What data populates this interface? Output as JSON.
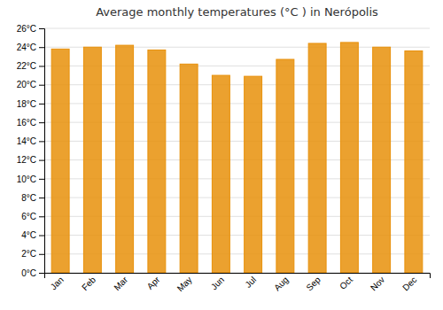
{
  "chart_data": {
    "type": "bar",
    "title": "Average monthly temperatures (°C ) in Nerópolis",
    "categories": [
      "Jan",
      "Feb",
      "Mar",
      "Apr",
      "May",
      "Jun",
      "Jul",
      "Aug",
      "Sep",
      "Oct",
      "Nov",
      "Dec"
    ],
    "values": [
      23.8,
      24.0,
      24.2,
      23.7,
      22.2,
      21.0,
      20.9,
      22.7,
      24.4,
      24.5,
      24.0,
      23.6
    ],
    "color": "#E8900A",
    "ylim": [
      0,
      26
    ],
    "yticks": [
      {
        "value": 0,
        "label": "0°C"
      },
      {
        "value": 2,
        "label": "2°C"
      },
      {
        "value": 4,
        "label": "4°C"
      },
      {
        "value": 6,
        "label": "6°C"
      },
      {
        "value": 8,
        "label": "8°C"
      },
      {
        "value": 10,
        "label": "10°C"
      },
      {
        "value": 12,
        "label": "12°C"
      },
      {
        "value": 14,
        "label": "14°C"
      },
      {
        "value": 16,
        "label": "16°C"
      },
      {
        "value": 18,
        "label": "18°C"
      },
      {
        "value": 20,
        "label": "20°C"
      },
      {
        "value": 22,
        "label": "22°C"
      },
      {
        "value": 24,
        "label": "24°C"
      },
      {
        "value": 26,
        "label": "26°C"
      }
    ],
    "grid": true
  }
}
